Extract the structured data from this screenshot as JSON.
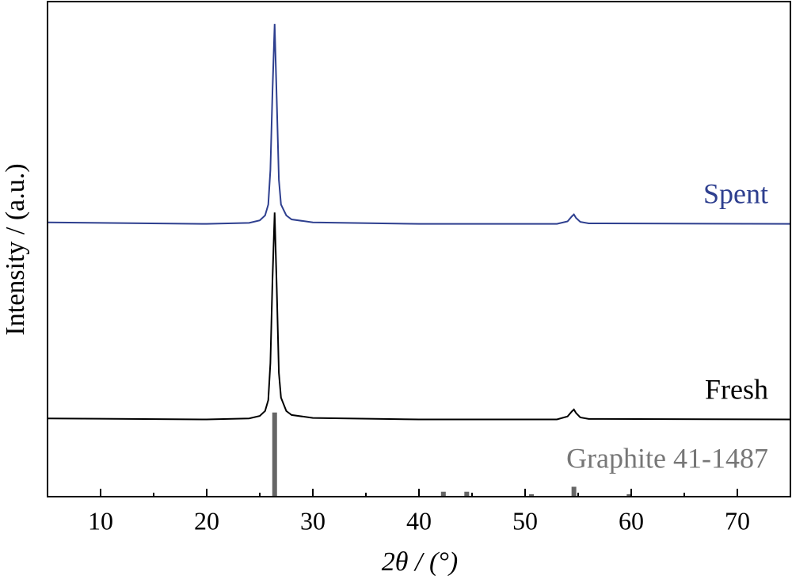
{
  "chart_data": {
    "type": "line",
    "xlabel": "2θ / (°)",
    "ylabel": "Intensity / (a.u.)",
    "xlim": [
      5,
      75
    ],
    "xticks": [
      10,
      20,
      30,
      40,
      50,
      60,
      70
    ],
    "xminorticks": [
      15,
      25,
      35,
      45,
      55,
      65
    ],
    "ylim": [
      0,
      100
    ],
    "series": [
      {
        "name": "Spent",
        "color": "#2e3f8f",
        "style": "line",
        "x": [
          5,
          20,
          24,
          25,
          25.5,
          25.8,
          26.0,
          26.2,
          26.4,
          26.6,
          26.8,
          27.0,
          27.5,
          28,
          30,
          40,
          53,
          54,
          54.4,
          54.6,
          54.8,
          55.2,
          56,
          75
        ],
        "values": [
          55.4,
          55.1,
          55.3,
          55.8,
          56.8,
          59,
          66,
          82,
          95.5,
          80,
          64,
          59,
          56.8,
          56,
          55.4,
          55.1,
          55.1,
          55.6,
          56.6,
          57,
          56.3,
          55.5,
          55.2,
          55.1
        ]
      },
      {
        "name": "Fresh",
        "color": "#000000",
        "style": "line",
        "x": [
          5,
          20,
          24,
          25,
          25.5,
          25.8,
          26.0,
          26.2,
          26.4,
          26.6,
          26.8,
          27.0,
          27.5,
          28,
          30,
          40,
          53,
          54,
          54.4,
          54.6,
          54.8,
          55.2,
          56,
          75
        ],
        "values": [
          15.8,
          15.6,
          15.8,
          16.3,
          17.3,
          19.5,
          27,
          44,
          57.4,
          42,
          25,
          20,
          17.3,
          16.5,
          15.9,
          15.6,
          15.6,
          16.2,
          17.2,
          17.6,
          16.9,
          16,
          15.7,
          15.6
        ]
      },
      {
        "name": "Graphite 41-1487",
        "color": "#666666",
        "style": "stick",
        "x": [
          26.4,
          42.3,
          44.5,
          50.6,
          54.6,
          59.8
        ],
        "values": [
          17,
          1,
          1,
          0.5,
          2,
          0.5
        ]
      }
    ]
  }
}
